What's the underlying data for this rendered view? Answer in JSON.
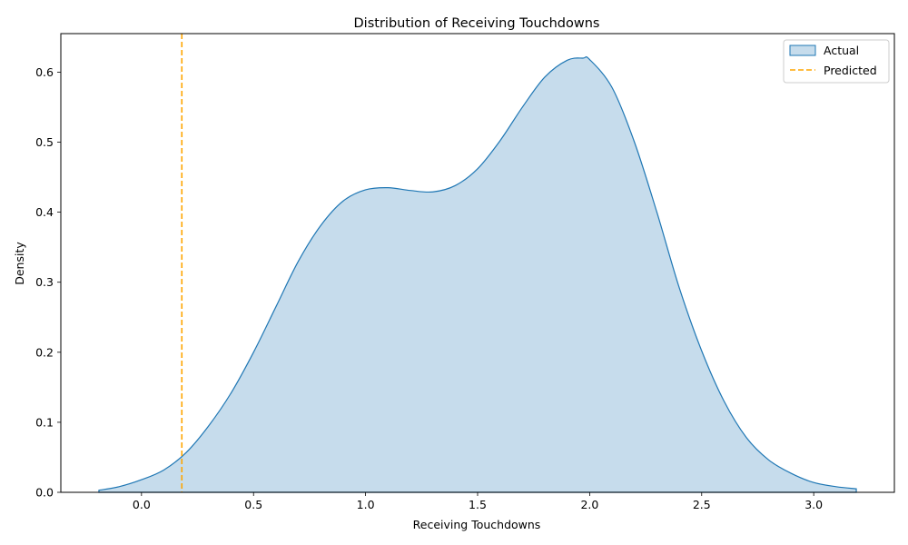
{
  "chart_data": {
    "type": "area",
    "title": "Distribution of Receiving Touchdowns",
    "xlabel": "Receiving Touchdowns",
    "ylabel": "Density",
    "xlim": [
      -0.36,
      3.36
    ],
    "ylim": [
      0,
      0.655
    ],
    "x_ticks": [
      0.0,
      0.5,
      1.0,
      1.5,
      2.0,
      2.5,
      3.0
    ],
    "x_tick_labels": [
      "0.0",
      "0.5",
      "1.0",
      "1.5",
      "2.0",
      "2.5",
      "3.0"
    ],
    "y_ticks": [
      0.0,
      0.1,
      0.2,
      0.3,
      0.4,
      0.5,
      0.6
    ],
    "y_tick_labels": [
      "0.0",
      "0.1",
      "0.2",
      "0.3",
      "0.4",
      "0.5",
      "0.6"
    ],
    "grid": false,
    "legend_position": "top-right",
    "series": [
      {
        "name": "Actual",
        "kind": "kde-fill",
        "fill_color": "#c6dcec",
        "line_color": "#1f77b4",
        "x": [
          -0.19,
          -0.1,
          0.0,
          0.1,
          0.2,
          0.3,
          0.4,
          0.5,
          0.6,
          0.7,
          0.8,
          0.9,
          1.0,
          1.1,
          1.2,
          1.3,
          1.4,
          1.5,
          1.6,
          1.7,
          1.8,
          1.9,
          1.97,
          2.0,
          2.1,
          2.2,
          2.3,
          2.4,
          2.5,
          2.6,
          2.7,
          2.8,
          2.9,
          3.0,
          3.1,
          3.19
        ],
        "y": [
          0.003,
          0.008,
          0.018,
          0.032,
          0.057,
          0.095,
          0.142,
          0.2,
          0.265,
          0.33,
          0.381,
          0.416,
          0.432,
          0.435,
          0.431,
          0.429,
          0.438,
          0.462,
          0.502,
          0.55,
          0.593,
          0.617,
          0.62,
          0.618,
          0.578,
          0.5,
          0.4,
          0.292,
          0.202,
          0.13,
          0.078,
          0.046,
          0.027,
          0.014,
          0.008,
          0.005
        ]
      },
      {
        "name": "Predicted",
        "kind": "vline",
        "x": 0.18,
        "line_color": "#ffa500"
      }
    ]
  }
}
